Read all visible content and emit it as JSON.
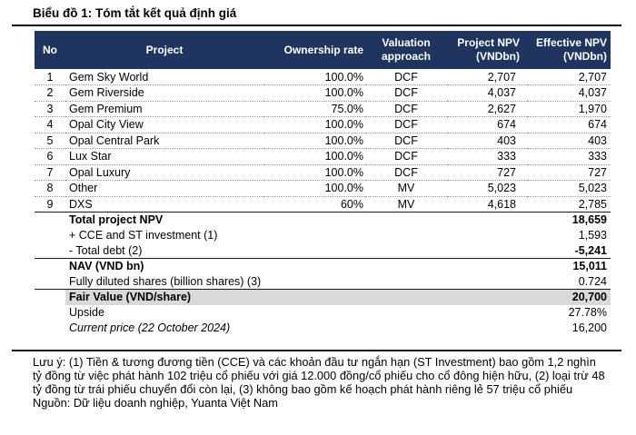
{
  "title": "Biểu đồ 1: Tóm tắt kết quả định giá",
  "table": {
    "columns": [
      "No",
      "Project",
      "Ownership rate",
      "Valuation approach",
      "Project NPV (VNDbn)",
      "Effective NPV (VNDbn)"
    ],
    "rows": [
      {
        "no": "1",
        "project": "Gem Sky World",
        "ownership": "100.0%",
        "approach": "DCF",
        "project_npv": "2,707",
        "effective_npv": "2,707"
      },
      {
        "no": "2",
        "project": "Gem Riverside",
        "ownership": "100.0%",
        "approach": "DCF",
        "project_npv": "4,037",
        "effective_npv": "4,037"
      },
      {
        "no": "3",
        "project": "Gem Premium",
        "ownership": "75.0%",
        "approach": "DCF",
        "project_npv": "2,627",
        "effective_npv": "1,970"
      },
      {
        "no": "4",
        "project": "Opal City View",
        "ownership": "100.0%",
        "approach": "DCF",
        "project_npv": "674",
        "effective_npv": "674"
      },
      {
        "no": "5",
        "project": "Opal Central Park",
        "ownership": "100.0%",
        "approach": "DCF",
        "project_npv": "403",
        "effective_npv": "403"
      },
      {
        "no": "6",
        "project": "Lux Star",
        "ownership": "100.0%",
        "approach": "DCF",
        "project_npv": "333",
        "effective_npv": "333"
      },
      {
        "no": "7",
        "project": "Opal Luxury",
        "ownership": "100.0%",
        "approach": "DCF",
        "project_npv": "727",
        "effective_npv": "727"
      },
      {
        "no": "8",
        "project": "Other",
        "ownership": "100.0%",
        "approach": "MV",
        "project_npv": "5,023",
        "effective_npv": "5,023"
      },
      {
        "no": "9",
        "project": "DXS",
        "ownership": "60%",
        "approach": "MV",
        "project_npv": "4,618",
        "effective_npv": "2,785"
      }
    ],
    "summary": [
      {
        "label": "Total project NPV",
        "value": "18,659",
        "bold": true,
        "line_above": true
      },
      {
        "label": "+ CCE and ST investment (1)",
        "value": "1,593"
      },
      {
        "label": "- Total debt (2)",
        "value": "-5,241",
        "value_bold": true
      },
      {
        "label": "NAV (VND bn)",
        "value": "15,011",
        "bold": true,
        "line_above": true
      },
      {
        "label": "Fully diluted shares (billion shares) (3)",
        "value": "0.724"
      },
      {
        "label": "Fair Value (VND/share)",
        "value": "20,700",
        "bold": true,
        "line_above": true,
        "highlight": true
      },
      {
        "label": "Upside",
        "value": "27.78%"
      },
      {
        "label": "Current price (22 October 2024)",
        "value": "16,200",
        "italic": true
      }
    ]
  },
  "notes": "Lưu ý: (1) Tiền & tương đương tiền (CCE) và các khoản đầu tư ngắn hạn (ST Investment) bao gồm 1,2 nghìn tỷ đồng từ việc phát hành 102 triệu cổ phiếu với giá 12.000 đồng/cổ phiếu cho cổ đông hiện hữu, (2) loại trừ 48 tỷ đồng từ trái phiếu chuyển đổi còn lại, (3) không bao gồm kế hoạch phát hành riêng lẻ 57 triệu cổ phiếu",
  "source": "Nguồn: Dữ liệu doanh nghiệp, Yuanta Việt Nam",
  "colors": {
    "header_bg": "#1f3560",
    "header_text": "#ffffff",
    "highlight_bg": "#d9d9d9"
  }
}
